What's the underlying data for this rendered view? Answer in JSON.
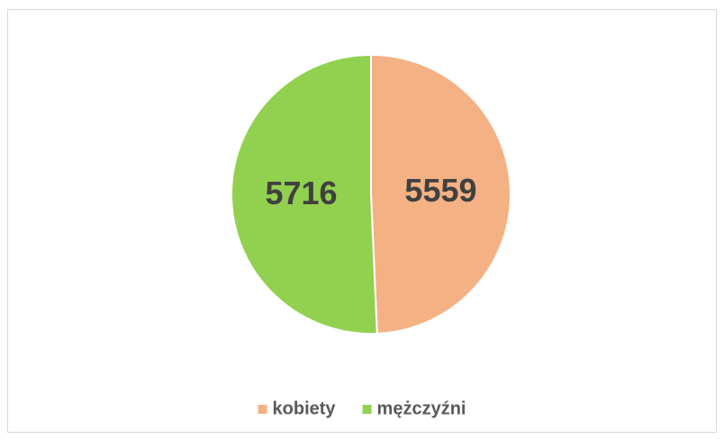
{
  "chart_data": {
    "type": "pie",
    "categories": [
      "kobiety",
      "mężczyźni"
    ],
    "values": [
      5559,
      5716
    ],
    "colors": [
      "#F4B183",
      "#92D050"
    ],
    "legend": "bottom"
  }
}
